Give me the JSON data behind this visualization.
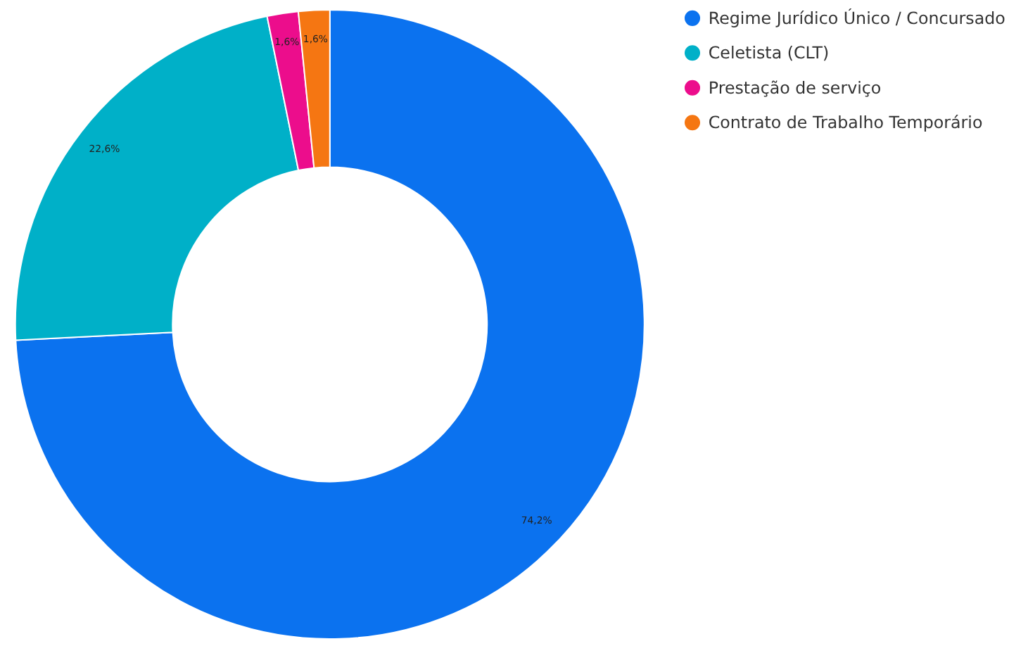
{
  "chart_data": {
    "type": "donut",
    "categories": [
      "Regime Jurídico Único / Concursado",
      "Celetista (CLT)",
      "Prestação de serviço",
      "Contrato de Trabalho Temporário"
    ],
    "values": [
      74.2,
      22.6,
      1.6,
      1.6
    ],
    "colors": [
      "#0b72ef",
      "#00b0c8",
      "#ec0d8c",
      "#f57612"
    ],
    "value_labels": [
      "74,2%",
      "22,6%",
      "1,6%",
      "1,6%"
    ],
    "legend": "right"
  }
}
